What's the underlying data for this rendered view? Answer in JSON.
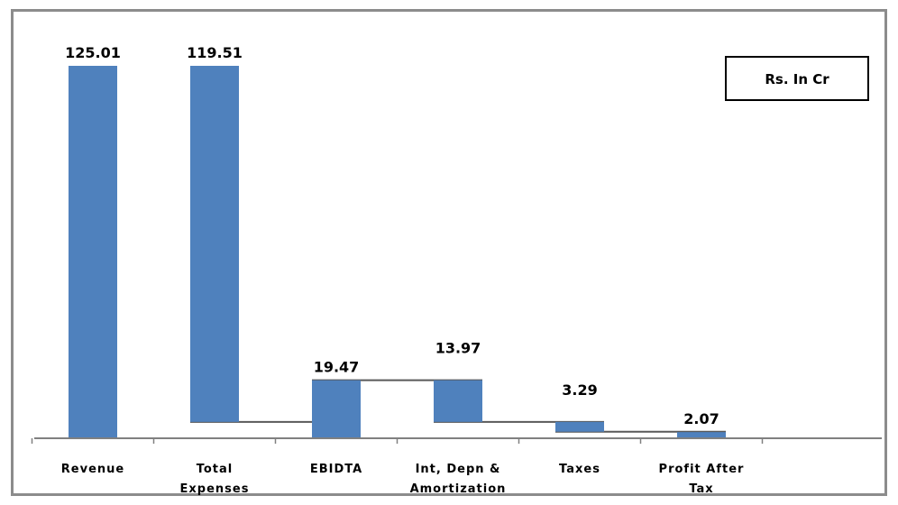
{
  "chart_data": {
    "type": "bar",
    "subtype": "waterfall",
    "categories": [
      "Revenue",
      "Total Expenses",
      "EBIDTA",
      "Int, Depn & Amortization",
      "Taxes",
      "Profit After Tax"
    ],
    "category_lines": [
      [
        "Revenue"
      ],
      [
        "Total",
        "Expenses"
      ],
      [
        "EBIDTA"
      ],
      [
        "Int, Depn &",
        "Amortization"
      ],
      [
        "Taxes"
      ],
      [
        "Profit After",
        "Tax"
      ]
    ],
    "values": [
      125.01,
      119.51,
      19.47,
      13.97,
      3.29,
      2.07
    ],
    "value_labels": [
      "125.01",
      "119.51",
      "19.47",
      "13.97",
      "3.29",
      "2.07"
    ],
    "units_box": "Rs. In Cr",
    "bar_color": "#4f81bd",
    "connector_color": "#595959",
    "grid": false,
    "title": "",
    "xlabel": "",
    "ylabel": ""
  }
}
